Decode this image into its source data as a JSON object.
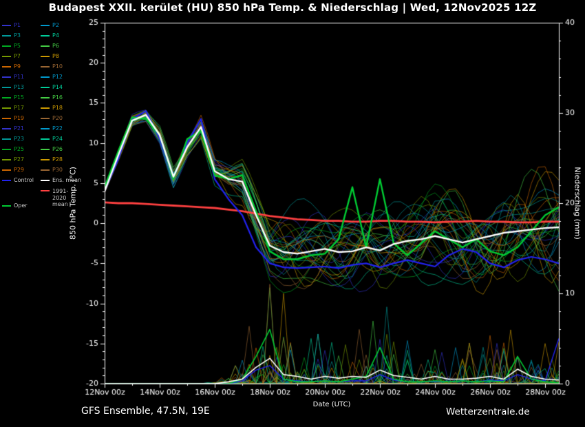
{
  "title": "Budapest XXII. kerület  (HU)  850 hPa Temp. & Niederschlag | Wed, 12Nov2025 12Z",
  "footer": {
    "left": "GFS Ensemble, 47.5N, 19E",
    "right": "Wetterzentrale.de"
  },
  "axes": {
    "left_label": "850 hPa Temp. (°C)",
    "right_label": "Niederschlag (mm)",
    "x_label": "Date (UTC)"
  },
  "legend_special": {
    "control": {
      "label": "Control",
      "color": "#2222ee"
    },
    "ens_mean": {
      "label": "Ens. mean",
      "color": "#ffffff"
    },
    "clim": {
      "label": "1991-2020 mean",
      "color": "#ff4040"
    },
    "oper": {
      "label": "Oper",
      "color": "#00cc33"
    }
  },
  "chart_data": {
    "type": "line",
    "title": "Budapest XXII. kerület (HU) 850 hPa Temp. & Niederschlag | Wed, 12Nov2025 12Z",
    "xlabel": "Date (UTC)",
    "ylabel_left": "850 hPa Temp. (°C)",
    "ylabel_right": "Niederschlag (mm)",
    "ylim_temp": [
      -20,
      25
    ],
    "ylim_precip": [
      0,
      40
    ],
    "ytick_temp": [
      -20,
      -15,
      -10,
      -5,
      0,
      5,
      10,
      15,
      20,
      25
    ],
    "ytick_precip": [
      0,
      10,
      20,
      30,
      40
    ],
    "x_tick_labels": [
      "12Nov 00z",
      "14Nov 00z",
      "16Nov 00z",
      "18Nov 00z",
      "20Nov 00z",
      "22Nov 00z",
      "24Nov 00z",
      "26Nov 00z",
      "28Nov 00z"
    ],
    "x_hours_step": 12,
    "x_total_hours": 396,
    "grid": false,
    "legend_position": "left",
    "series": [
      {
        "id": "clim_temp",
        "name": "1991-2020 mean",
        "axis": "temp",
        "color": "#ff4040",
        "width": 2.8,
        "values": [
          2.6,
          2.5,
          2.5,
          2.4,
          2.3,
          2.2,
          2.1,
          2.0,
          1.9,
          1.7,
          1.5,
          1.2,
          0.9,
          0.7,
          0.5,
          0.4,
          0.3,
          0.3,
          0.2,
          0.2,
          0.3,
          0.3,
          0.2,
          0.2,
          0.1,
          0.2,
          0.2,
          0.3,
          0.2,
          0.2,
          0.1,
          0.1,
          0.2,
          0.2
        ]
      },
      {
        "id": "control_temp",
        "name": "Control",
        "axis": "temp",
        "color": "#2222ee",
        "width": 2.2,
        "values": [
          4.0,
          8.0,
          13.0,
          14.0,
          10.5,
          5.5,
          10.0,
          13.0,
          5.5,
          3.0,
          1.0,
          -3.0,
          -5.0,
          -5.5,
          -5.6,
          -5.5,
          -5.4,
          -5.6,
          -5.2,
          -5.0,
          -5.5,
          -5.0,
          -4.6,
          -5.0,
          -5.4,
          -4.0,
          -3.2,
          -3.6,
          -5.0,
          -5.5,
          -4.6,
          -4.2,
          -4.5,
          -5.0
        ]
      },
      {
        "id": "oper_temp",
        "name": "Oper",
        "axis": "temp",
        "color": "#00cc33",
        "width": 2.4,
        "values": [
          4.5,
          9.0,
          13.2,
          13.0,
          11.0,
          5.5,
          10.5,
          11.5,
          6.0,
          5.5,
          6.0,
          1.5,
          -3.5,
          -4.5,
          -4.5,
          -4.0,
          -3.8,
          -2.0,
          4.5,
          -3.0,
          5.5,
          -2.5,
          -4.0,
          -2.5,
          -1.0,
          -2.0,
          -3.0,
          -2.0,
          -3.5,
          -4.0,
          -3.0,
          -1.0,
          1.0,
          2.0
        ]
      },
      {
        "id": "ens_mean_temp",
        "name": "Ens. mean",
        "axis": "temp",
        "color": "#ffffff",
        "width": 2.4,
        "values": [
          4.0,
          8.5,
          12.8,
          13.5,
          11.0,
          5.8,
          9.5,
          12.0,
          6.5,
          5.5,
          5.2,
          1.0,
          -2.8,
          -3.6,
          -3.8,
          -3.5,
          -3.2,
          -3.6,
          -3.5,
          -3.0,
          -3.4,
          -2.6,
          -2.2,
          -2.0,
          -1.6,
          -2.0,
          -2.4,
          -2.0,
          -1.6,
          -1.2,
          -1.0,
          -0.8,
          -0.6,
          -0.5
        ]
      },
      {
        "id": "control_precip",
        "name": "Control Niederschlag",
        "axis": "precip",
        "color": "#2222ee",
        "width": 1.4,
        "values": [
          0,
          0,
          0,
          0,
          0,
          0,
          0,
          0,
          0,
          0,
          0.3,
          1.5,
          2.0,
          0.5,
          0.3,
          0.2,
          0.3,
          0.2,
          0.3,
          0.3,
          1.0,
          0.4,
          0.2,
          0.2,
          0.2,
          0.2,
          0.3,
          0.2,
          0.4,
          0.3,
          1.0,
          0.5,
          0.3,
          5.0
        ]
      },
      {
        "id": "oper_precip",
        "name": "Oper Niederschlag",
        "axis": "precip",
        "color": "#00cc33",
        "width": 1.6,
        "values": [
          0,
          0,
          0,
          0,
          0,
          0,
          0,
          0,
          0,
          0,
          0.5,
          3.0,
          6.0,
          0.5,
          0.2,
          0.2,
          0.3,
          0.2,
          0.5,
          0.8,
          4.0,
          0.5,
          0.2,
          0.2,
          0.3,
          0.2,
          0.3,
          0.2,
          0.3,
          0.2,
          3.0,
          0.5,
          0.2,
          0.1
        ]
      },
      {
        "id": "ens_mean_precip",
        "name": "Ens. mean Niederschlag",
        "axis": "precip",
        "color": "#ffffff",
        "width": 1.6,
        "values": [
          0,
          0,
          0,
          0,
          0,
          0,
          0,
          0,
          0,
          0.2,
          0.5,
          1.8,
          2.8,
          1.0,
          0.8,
          0.5,
          0.8,
          0.6,
          0.8,
          0.7,
          1.5,
          0.9,
          0.7,
          0.5,
          0.8,
          0.5,
          0.5,
          0.6,
          0.8,
          0.5,
          1.6,
          0.8,
          0.5,
          0.4
        ]
      }
    ],
    "member_temp_spread": [
      0.3,
      0.5,
      0.6,
      0.7,
      0.8,
      1.0,
      1.0,
      1.2,
      1.5,
      1.8,
      2.2,
      2.8,
      3.5,
      3.8,
      4.0,
      4.0,
      4.2,
      4.2,
      4.5,
      4.5,
      4.5,
      4.5,
      4.5,
      4.8,
      4.8,
      4.8,
      5.0,
      5.0,
      5.0,
      5.2,
      5.2,
      5.2,
      5.5,
      5.5
    ],
    "member_precip_spread": [
      0,
      0,
      0,
      0,
      0,
      0,
      0,
      0,
      0.5,
      1.0,
      3.0,
      10.0,
      16.0,
      10.0,
      6.0,
      5.0,
      6.0,
      5.0,
      6.0,
      6.0,
      10.0,
      7.0,
      5.0,
      4.0,
      5.0,
      4.0,
      4.0,
      5.0,
      6.0,
      5.0,
      9.0,
      6.0,
      5.0,
      6.0
    ],
    "members": [
      {
        "name": "P1",
        "color": "#3333cc"
      },
      {
        "name": "P2",
        "color": "#0099cc"
      },
      {
        "name": "P3",
        "color": "#009999"
      },
      {
        "name": "P4",
        "color": "#00cc99"
      },
      {
        "name": "P5",
        "color": "#00aa22"
      },
      {
        "name": "P6",
        "color": "#44cc44"
      },
      {
        "name": "P7",
        "color": "#779900"
      },
      {
        "name": "P8",
        "color": "#cc9900"
      },
      {
        "name": "P9",
        "color": "#cc6600"
      },
      {
        "name": "P10",
        "color": "#996633"
      },
      {
        "name": "P11",
        "color": "#3333cc"
      },
      {
        "name": "P12",
        "color": "#0099cc"
      },
      {
        "name": "P13",
        "color": "#009999"
      },
      {
        "name": "P14",
        "color": "#00cc99"
      },
      {
        "name": "P15",
        "color": "#00aa22"
      },
      {
        "name": "P16",
        "color": "#44cc44"
      },
      {
        "name": "P17",
        "color": "#779900"
      },
      {
        "name": "P18",
        "color": "#cc9900"
      },
      {
        "name": "P19",
        "color": "#cc6600"
      },
      {
        "name": "P20",
        "color": "#996633"
      },
      {
        "name": "P21",
        "color": "#3333cc"
      },
      {
        "name": "P22",
        "color": "#0099cc"
      },
      {
        "name": "P23",
        "color": "#009999"
      },
      {
        "name": "P24",
        "color": "#00cc99"
      },
      {
        "name": "P25",
        "color": "#00aa22"
      },
      {
        "name": "P26",
        "color": "#44cc44"
      },
      {
        "name": "P27",
        "color": "#779900"
      },
      {
        "name": "P28",
        "color": "#cc9900"
      },
      {
        "name": "P29",
        "color": "#cc6600"
      },
      {
        "name": "P30",
        "color": "#996633"
      }
    ]
  }
}
